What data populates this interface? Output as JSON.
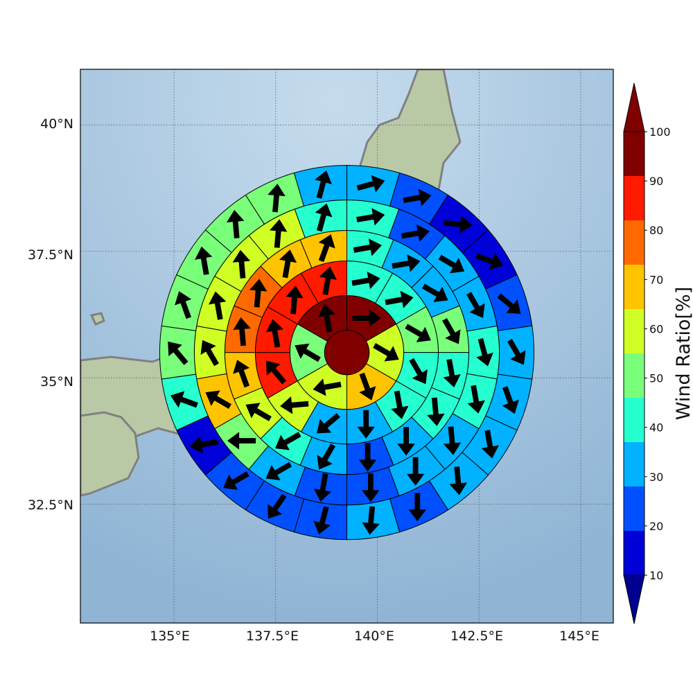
{
  "map": {
    "lat_labels": [
      "40°N",
      "37.5°N",
      "35°N",
      "32.5°N"
    ],
    "lon_labels": [
      "135°E",
      "137.5°E",
      "140°E",
      "142.5°E",
      "145°E"
    ],
    "lat_values": [
      40,
      37.5,
      35,
      32.5
    ],
    "lon_values": [
      135,
      137.5,
      140,
      142.5,
      145
    ],
    "extent": {
      "lon_min": 132.7,
      "lon_max": 145.8,
      "lat_min": 30.15,
      "lat_max": 41.1
    },
    "colors": {
      "sea": "#8fb4d4",
      "sea_light": "#c6dced",
      "land": "#b9c9a6",
      "coast": "#808080",
      "grid": "#4a4a4a"
    }
  },
  "colorbar": {
    "label": "Wind Ratio[%]",
    "ticks": [
      "10",
      "20",
      "30",
      "40",
      "50",
      "60",
      "70",
      "80",
      "90",
      "100"
    ],
    "colors": [
      "#0000d8",
      "#0050ff",
      "#00b2ff",
      "#26ffd0",
      "#7aff7a",
      "#d0ff26",
      "#ffc400",
      "#ff6a00",
      "#ff1a00",
      "#800000"
    ],
    "under_color": "#000090",
    "over_color": "#800000"
  },
  "rose": {
    "center": {
      "lon": 139.25,
      "lat": 35.5
    },
    "ring_radii_deg": [
      0.55,
      1.4,
      2.25,
      3.0,
      3.75,
      4.6
    ],
    "center_value": 100,
    "rings": [
      {
        "name": "ring-1",
        "values": [
          100,
          60,
          70,
          60,
          55,
          100
        ],
        "dirs": [
          90,
          120,
          160,
          260,
          300,
          350
        ]
      },
      {
        "name": "ring-2",
        "values": [
          45,
          45,
          55,
          40,
          45,
          35,
          30,
          60,
          90,
          90,
          90,
          90
        ],
        "dirs": [
          80,
          80,
          120,
          150,
          170,
          180,
          230,
          265,
          320,
          350,
          5,
          10
        ]
      },
      {
        "name": "ring-3",
        "values": [
          45,
          35,
          35,
          55,
          45,
          40,
          35,
          25,
          30,
          40,
          65,
          75,
          80,
          85,
          75,
          75
        ],
        "dirs": [
          80,
          80,
          120,
          150,
          170,
          175,
          180,
          180,
          210,
          240,
          300,
          340,
          355,
          5,
          10,
          20
        ]
      },
      {
        "name": "ring-4",
        "values": [
          45,
          25,
          35,
          35,
          45,
          40,
          35,
          30,
          25,
          25,
          35,
          50,
          75,
          65,
          65,
          65,
          65,
          45
        ],
        "dirs": [
          80,
          80,
          120,
          150,
          165,
          170,
          175,
          180,
          180,
          190,
          240,
          270,
          300,
          330,
          350,
          355,
          5,
          15
        ]
      },
      {
        "name": "ring-5",
        "values": [
          35,
          20,
          15,
          15,
          20,
          30,
          35,
          35,
          30,
          25,
          35,
          25,
          25,
          20,
          15,
          45,
          55,
          50,
          50,
          50,
          50,
          35
        ],
        "dirs": [
          75,
          80,
          95,
          110,
          130,
          150,
          160,
          170,
          175,
          180,
          185,
          195,
          215,
          240,
          260,
          290,
          320,
          340,
          350,
          355,
          5,
          15
        ]
      }
    ]
  }
}
